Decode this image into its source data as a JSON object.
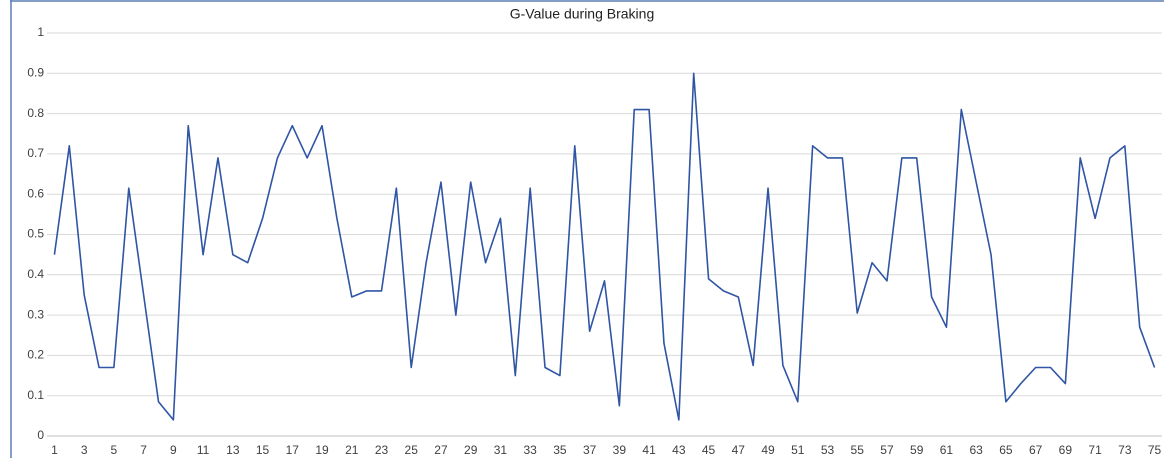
{
  "chart_data": {
    "type": "line",
    "title": "G-Value during Braking",
    "categories": [
      1,
      null,
      3,
      null,
      5,
      null,
      7,
      null,
      9,
      null,
      11,
      null,
      13,
      null,
      15,
      null,
      17,
      null,
      19,
      null,
      21,
      null,
      23,
      null,
      25,
      null,
      27,
      null,
      29,
      null,
      31,
      null,
      33,
      null,
      35,
      null,
      37,
      null,
      39,
      null,
      41,
      null,
      43,
      null,
      45,
      null,
      47,
      null,
      49,
      null,
      51,
      null,
      53,
      null,
      55,
      null,
      57,
      null,
      59,
      null,
      61,
      null,
      63,
      null,
      65,
      null,
      67,
      null,
      69,
      null,
      71,
      null,
      73,
      null,
      75
    ],
    "series": [
      {
        "name": "G-Value",
        "color": "#2f55a4",
        "values": [
          0.45,
          0.72,
          0.35,
          0.17,
          0.17,
          0.615,
          0.35,
          0.085,
          0.04,
          0.77,
          0.45,
          0.69,
          0.45,
          0.43,
          0.54,
          0.69,
          0.77,
          0.69,
          0.77,
          0.54,
          0.345,
          0.36,
          0.36,
          0.615,
          0.17,
          0.43,
          0.63,
          0.3,
          0.63,
          0.43,
          0.54,
          0.15,
          0.615,
          0.17,
          0.15,
          0.72,
          0.26,
          0.385,
          0.075,
          0.81,
          0.81,
          0.23,
          0.04,
          0.9,
          0.39,
          0.36,
          0.345,
          0.175,
          0.615,
          0.175,
          0.085,
          0.72,
          0.69,
          0.69,
          0.305,
          0.43,
          0.385,
          0.69,
          0.69,
          0.345,
          0.27,
          0.81,
          0.63,
          0.45,
          0.085,
          0.13,
          0.17,
          0.17,
          0.13,
          0.69,
          0.54,
          0.69,
          0.72,
          0.27,
          0.17
        ]
      }
    ],
    "ylim": [
      0,
      1
    ],
    "yticks": [
      0,
      0.1,
      0.2,
      0.3,
      0.4,
      0.5,
      0.6,
      0.7,
      0.8,
      0.9,
      1
    ],
    "grid": true
  }
}
